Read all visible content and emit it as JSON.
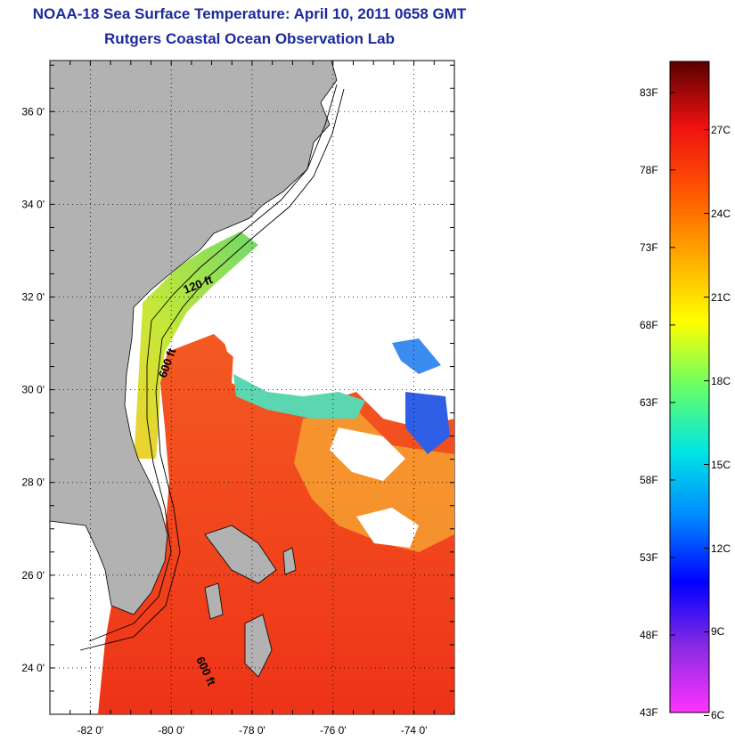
{
  "header": {
    "title": "NOAA-18 Sea Surface Temperature:  April 10, 2011 0658 GMT",
    "subtitle": "Rutgers Coastal Ocean Observation Lab"
  },
  "map": {
    "lat_range": [
      23.0,
      37.1
    ],
    "lon_range": [
      -83.0,
      -73.0
    ],
    "lat_ticks": [
      {
        "value": 24,
        "label": "24 0'"
      },
      {
        "value": 26,
        "label": "26 0'"
      },
      {
        "value": 28,
        "label": "28 0'"
      },
      {
        "value": 30,
        "label": "30 0'"
      },
      {
        "value": 32,
        "label": "32 0'"
      },
      {
        "value": 34,
        "label": "34 0'"
      },
      {
        "value": 36,
        "label": "36 0'"
      }
    ],
    "lon_ticks": [
      {
        "value": -82,
        "label": "-82 0'"
      },
      {
        "value": -80,
        "label": "-80 0'"
      },
      {
        "value": -78,
        "label": "-78 0'"
      },
      {
        "value": -76,
        "label": "-76 0'"
      },
      {
        "value": -74,
        "label": "-74 0'"
      }
    ],
    "grid": "dotted",
    "contour_labels": [
      "120 ft",
      "600 ft",
      "600 ft"
    ],
    "colors": {
      "land": "#b2b2b2",
      "cloud": "#ffffff",
      "warm_sst": "#f24a1a",
      "shelf_sst": "#a8e040"
    }
  },
  "colorbar": {
    "range_f": [
      43,
      85
    ],
    "fahrenheit_labels": [
      "83F",
      "78F",
      "73F",
      "68F",
      "63F",
      "58F",
      "53F",
      "48F",
      "43F"
    ],
    "celsius_labels": [
      "27C",
      "24C",
      "21C",
      "18C",
      "15C",
      "12C",
      "9C",
      "6C"
    ],
    "colors": [
      "#ff33ff",
      "#8a2be2",
      "#0000ff",
      "#0088ff",
      "#00e5e5",
      "#66ff66",
      "#ffff00",
      "#ffaa00",
      "#ff5500",
      "#ee1111",
      "#5a0000"
    ]
  }
}
